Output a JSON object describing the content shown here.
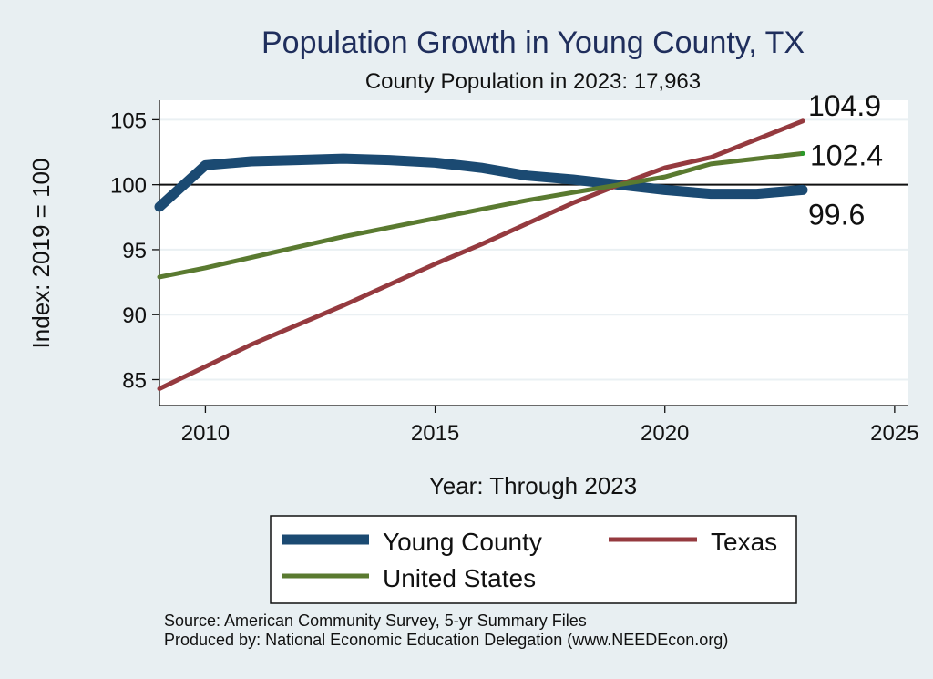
{
  "chart_data": {
    "type": "line",
    "title": "Population Growth in Young County, TX",
    "subtitle": "County Population in 2023: 17,963",
    "xlabel": "Year: Through 2023",
    "ylabel": "Index: 2019 = 100",
    "xlim": [
      2009,
      2025.3
    ],
    "ylim": [
      83,
      106.5
    ],
    "x_ticks": [
      2010,
      2015,
      2020,
      2025
    ],
    "y_ticks": [
      85,
      90,
      95,
      100,
      105
    ],
    "reference_line": 100,
    "series": [
      {
        "name": "Young County",
        "color": "#1b4a72",
        "x": [
          2009,
          2010,
          2011,
          2012,
          2013,
          2014,
          2015,
          2016,
          2017,
          2018,
          2019,
          2020,
          2021,
          2022,
          2023
        ],
        "values": [
          98.3,
          101.5,
          101.8,
          101.9,
          102.0,
          101.9,
          101.7,
          101.3,
          100.7,
          100.4,
          100.0,
          99.6,
          99.3,
          99.3,
          99.6
        ],
        "end_label": "99.6"
      },
      {
        "name": "Texas",
        "color": "#953a3f",
        "x": [
          2009,
          2010,
          2011,
          2012,
          2013,
          2014,
          2015,
          2016,
          2017,
          2018,
          2019,
          2020,
          2021,
          2022,
          2023
        ],
        "values": [
          84.3,
          86.0,
          87.7,
          89.2,
          90.7,
          92.3,
          93.9,
          95.4,
          97.0,
          98.6,
          100.0,
          101.3,
          102.1,
          103.5,
          104.9
        ],
        "end_label": "104.9"
      },
      {
        "name": "United States",
        "color": "#5a7a30",
        "x": [
          2009,
          2010,
          2011,
          2012,
          2013,
          2014,
          2015,
          2016,
          2017,
          2018,
          2019,
          2020,
          2021,
          2022,
          2023
        ],
        "values": [
          92.9,
          93.6,
          94.4,
          95.2,
          96.0,
          96.7,
          97.4,
          98.1,
          98.8,
          99.4,
          100.0,
          100.6,
          101.6,
          102.0,
          102.4
        ],
        "end_label": "102.4"
      }
    ],
    "legend": {
      "position": "bottom",
      "entries": [
        "Young  County",
        "Texas",
        "United States"
      ]
    }
  },
  "footer": {
    "source": "Source: American Community Survey, 5-yr Summary Files",
    "produced_by": "Produced by: National Economic Education Delegation (www.NEEDEcon.org)"
  }
}
